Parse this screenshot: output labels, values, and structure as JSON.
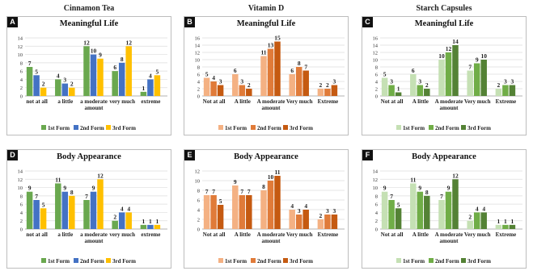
{
  "columns": [
    "Cinnamon Tea",
    "Vitamin D",
    "Starch Capsules"
  ],
  "chart_data": [
    {
      "type": "bar",
      "panel": "A",
      "title": "Meaningful Life",
      "categories": [
        "not at all",
        "a little",
        "a moderate amount",
        "very much",
        "extreme"
      ],
      "ylim": [
        0,
        14
      ],
      "yticks": [
        0,
        2,
        4,
        6,
        8,
        10,
        12,
        14
      ],
      "series": [
        {
          "name": "1st Form",
          "values": [
            7,
            4,
            12,
            6,
            1
          ]
        },
        {
          "name": "2nd Form",
          "values": [
            5,
            3,
            10,
            8,
            4
          ]
        },
        {
          "name": "3rd Form",
          "values": [
            2,
            2,
            9,
            12,
            5
          ]
        }
      ],
      "colors": [
        "#6aa84f",
        "#4472c4",
        "#ffc000"
      ]
    },
    {
      "type": "bar",
      "panel": "B",
      "title": "Meaningful Life",
      "categories": [
        "Not at all",
        "A little",
        "A moderate amount",
        "Very much",
        "Extreme"
      ],
      "ylim": [
        0,
        16
      ],
      "yticks": [
        0,
        2,
        4,
        6,
        8,
        10,
        12,
        14,
        16
      ],
      "series": [
        {
          "name": "1st Form",
          "values": [
            5,
            6,
            11,
            6,
            2
          ]
        },
        {
          "name": "2nd Form",
          "values": [
            4,
            3,
            13,
            8,
            2
          ]
        },
        {
          "name": "3rd Form",
          "values": [
            3,
            2,
            15,
            7,
            3
          ]
        }
      ],
      "colors": [
        "#f4b183",
        "#e07b39",
        "#c55a11"
      ]
    },
    {
      "type": "bar",
      "panel": "C",
      "title": "Meaningful Life",
      "categories": [
        "Not at all",
        "A little",
        "A moderate amount",
        "Very much",
        "Extreme"
      ],
      "ylim": [
        0,
        16
      ],
      "yticks": [
        0,
        2,
        4,
        6,
        8,
        10,
        12,
        14,
        16
      ],
      "series": [
        {
          "name": "1st Form",
          "values": [
            5,
            6,
            10,
            7,
            2
          ]
        },
        {
          "name": "2nd Form",
          "values": [
            3,
            3,
            12,
            9,
            3
          ]
        },
        {
          "name": "3rd Form",
          "values": [
            1,
            2,
            14,
            10,
            3
          ]
        }
      ],
      "colors": [
        "#c5e0b4",
        "#70ad47",
        "#548235"
      ]
    },
    {
      "type": "bar",
      "panel": "D",
      "title": "Body Appearance",
      "categories": [
        "not at all",
        "a little",
        "a moderate amount",
        "very much",
        "extreme"
      ],
      "ylim": [
        0,
        14
      ],
      "yticks": [
        0,
        2,
        4,
        6,
        8,
        10,
        12,
        14
      ],
      "series": [
        {
          "name": "1st Form",
          "values": [
            9,
            11,
            7,
            2,
            1
          ]
        },
        {
          "name": "2nd Form",
          "values": [
            7,
            9,
            9,
            4,
            1
          ]
        },
        {
          "name": "3rd Form",
          "values": [
            5,
            8,
            12,
            4,
            1
          ]
        }
      ],
      "colors": [
        "#6aa84f",
        "#4472c4",
        "#ffc000"
      ]
    },
    {
      "type": "bar",
      "panel": "E",
      "title": "Body Appearance",
      "categories": [
        "Not at all",
        "A little",
        "A moderate amount",
        "Very much",
        "Extreme"
      ],
      "ylim": [
        0,
        12
      ],
      "yticks": [
        0,
        2,
        4,
        6,
        8,
        10,
        12
      ],
      "series": [
        {
          "name": "1st Form",
          "values": [
            7,
            9,
            8,
            4,
            2
          ]
        },
        {
          "name": "2nd Form",
          "values": [
            7,
            7,
            10,
            3,
            3
          ]
        },
        {
          "name": "3rd Form",
          "values": [
            5,
            7,
            11,
            4,
            3
          ]
        }
      ],
      "colors": [
        "#f4b183",
        "#e07b39",
        "#c55a11"
      ]
    },
    {
      "type": "bar",
      "panel": "F",
      "title": "Body Appearance",
      "categories": [
        "Not at all",
        "A little",
        "A moderate amount",
        "Very much",
        "Extreme"
      ],
      "ylim": [
        0,
        14
      ],
      "yticks": [
        0,
        2,
        4,
        6,
        8,
        10,
        12,
        14
      ],
      "series": [
        {
          "name": "1st Form",
          "values": [
            9,
            11,
            7,
            2,
            1
          ]
        },
        {
          "name": "2nd Form",
          "values": [
            7,
            9,
            9,
            4,
            1
          ]
        },
        {
          "name": "3rd Form",
          "values": [
            5,
            8,
            12,
            4,
            1
          ]
        }
      ],
      "colors": [
        "#c5e0b4",
        "#70ad47",
        "#548235"
      ]
    }
  ]
}
